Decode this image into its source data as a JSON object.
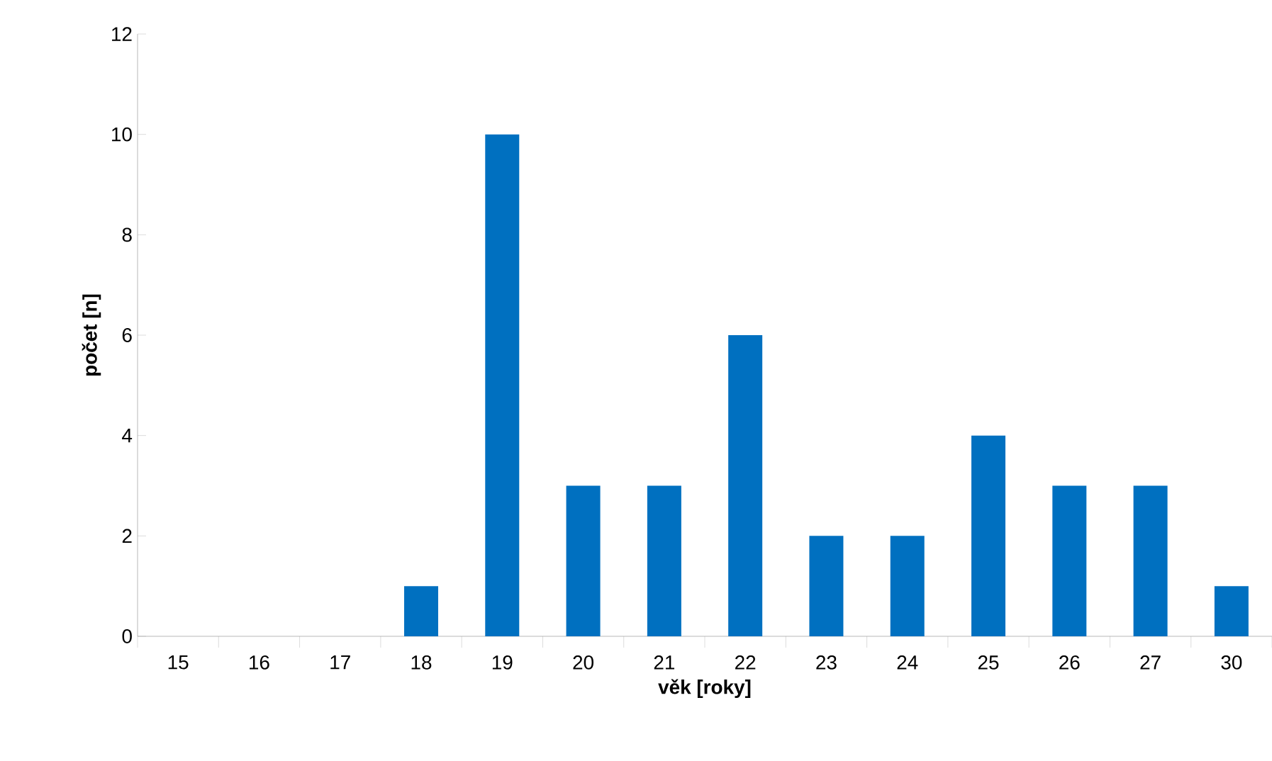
{
  "chart_data": {
    "type": "bar",
    "xlabel": "**věk [roky]**",
    "ylabel": "**počet [n]**",
    "categories": [
      "15",
      "16",
      "17",
      "18",
      "19",
      "20",
      "21",
      "22",
      "23",
      "24",
      "25",
      "26",
      "27",
      "30"
    ],
    "values": [
      0,
      0,
      0,
      1,
      10,
      3,
      3,
      6,
      2,
      2,
      4,
      3,
      3,
      1
    ],
    "color": "#0070c0",
    "ylim": [
      0,
      12
    ],
    "yticks": [
      0,
      2,
      4,
      6,
      8,
      10,
      12
    ]
  }
}
